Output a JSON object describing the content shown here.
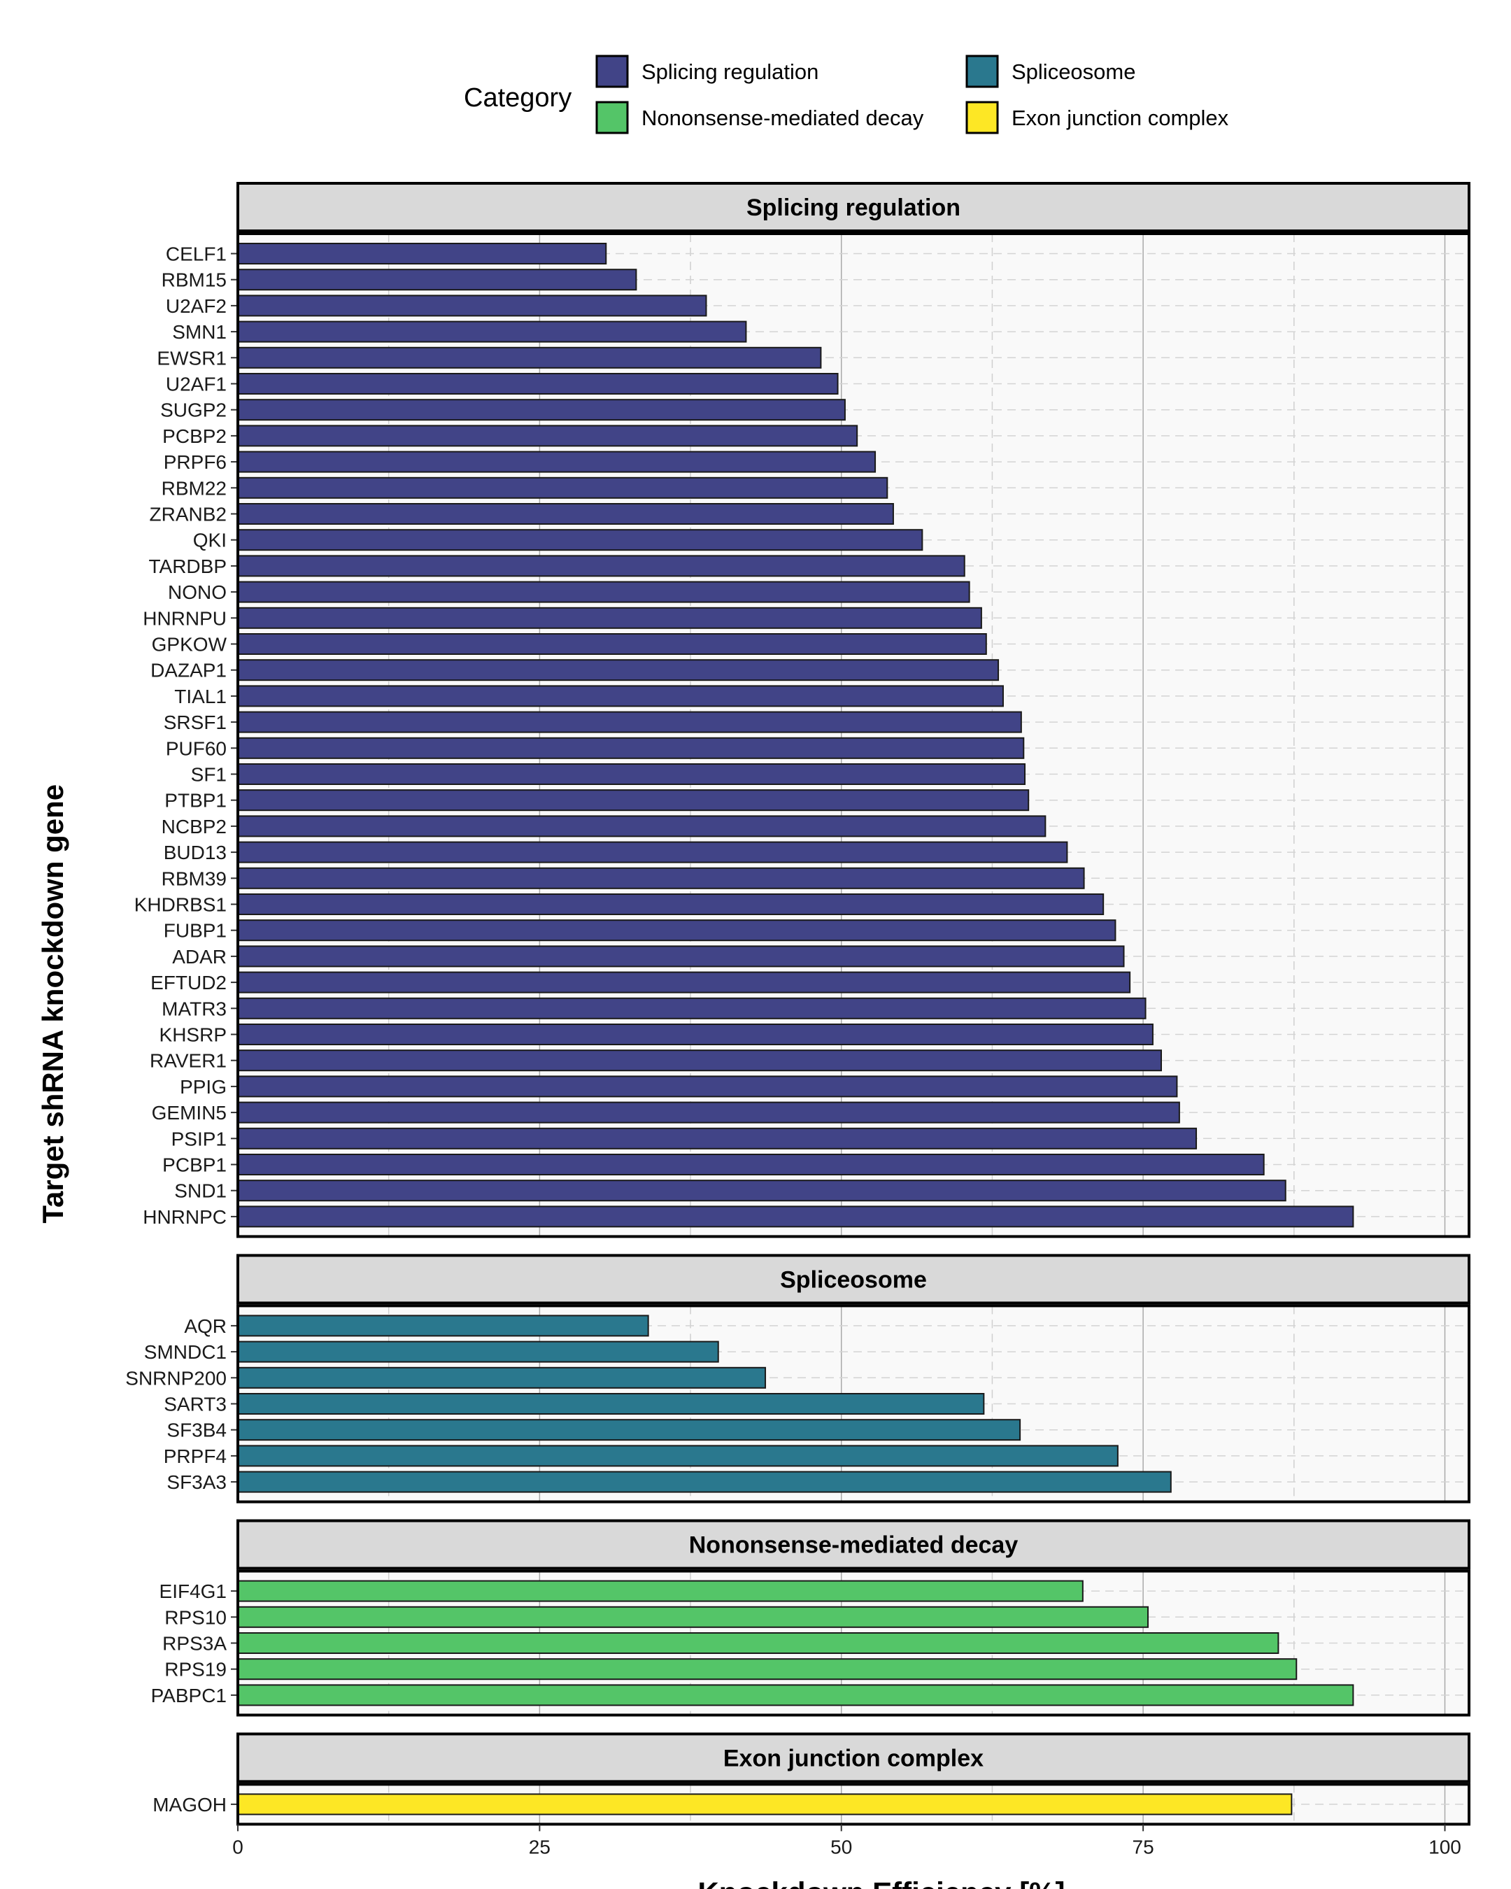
{
  "chart_data": {
    "type": "bar",
    "orientation": "horizontal",
    "xlabel": "Knockdown Efficiency [%]",
    "ylabel": "Target shRNA knockdown gene",
    "xlim": [
      0,
      102
    ],
    "x_ticks": [
      0,
      25,
      50,
      75,
      100
    ],
    "grid": true,
    "legend": {
      "title": "Category",
      "position": "top",
      "items": [
        {
          "label": "Splicing regulation",
          "color": "#414487"
        },
        {
          "label": "Spliceosome",
          "color": "#2A788E"
        },
        {
          "label": "Nononsense-mediated decay",
          "color": "#54C568"
        },
        {
          "label": "Exon junction complex",
          "color": "#FDE725"
        }
      ]
    },
    "facets": [
      {
        "name": "Splicing regulation",
        "color": "#414487",
        "categories": [
          "CELF1",
          "RBM15",
          "U2AF2",
          "SMN1",
          "EWSR1",
          "U2AF1",
          "SUGP2",
          "PCBP2",
          "PRPF6",
          "RBM22",
          "ZRANB2",
          "QKI",
          "TARDBP",
          "NONO",
          "HNRNPU",
          "GPKOW",
          "DAZAP1",
          "TIAL1",
          "SRSF1",
          "PUF60",
          "SF1",
          "PTBP1",
          "NCBP2",
          "BUD13",
          "RBM39",
          "KHDRBS1",
          "FUBP1",
          "ADAR",
          "EFTUD2",
          "MATR3",
          "KHSRP",
          "RAVER1",
          "PPIG",
          "GEMIN5",
          "PSIP1",
          "PCBP1",
          "SND1",
          "HNRNPC"
        ],
        "values": [
          30.5,
          33,
          38.8,
          42.1,
          48.3,
          49.7,
          50.3,
          51.3,
          52.8,
          53.8,
          54.3,
          56.7,
          60.2,
          60.6,
          61.6,
          62,
          63,
          63.4,
          64.9,
          65.1,
          65.2,
          65.5,
          66.9,
          68.7,
          70.1,
          71.7,
          72.7,
          73.4,
          73.9,
          75.2,
          75.8,
          76.5,
          77.8,
          78,
          79.4,
          85,
          86.8,
          92.4
        ]
      },
      {
        "name": "Spliceosome",
        "color": "#2A788E",
        "categories": [
          "AQR",
          "SMNDC1",
          "SNRNP200",
          "SART3",
          "SF3B4",
          "PRPF4",
          "SF3A3"
        ],
        "values": [
          34,
          39.8,
          43.7,
          61.8,
          64.8,
          72.9,
          77.3
        ]
      },
      {
        "name": "Nononsense-mediated decay",
        "color": "#54C568",
        "categories": [
          "EIF4G1",
          "RPS10",
          "RPS3A",
          "RPS19",
          "PABPC1"
        ],
        "values": [
          70,
          75.4,
          86.2,
          87.7,
          92.4
        ]
      },
      {
        "name": "Exon junction complex",
        "color": "#FDE725",
        "categories": [
          "MAGOH"
        ],
        "values": [
          87.3
        ]
      }
    ]
  }
}
